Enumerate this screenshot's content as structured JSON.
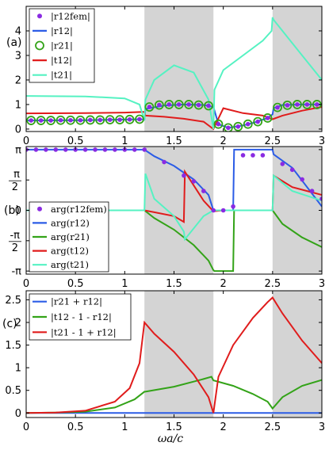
{
  "colors": {
    "blue": "#2b5ce6",
    "green": "#33a318",
    "red": "#e01c1c",
    "cyan": "#55f2c2",
    "purple": "#8a2be2",
    "band": "#d4d4d4"
  },
  "chart_data": [
    {
      "type": "line",
      "panel_label": "(a)",
      "xlim": [
        0,
        3
      ],
      "ylim": [
        -0.1,
        5
      ],
      "x_ticks": [
        0,
        0.5,
        1,
        1.5,
        2,
        2.5,
        3
      ],
      "x_tick_labels": [
        "0",
        "0.5",
        "1",
        "1.5",
        "2",
        "2.5",
        "3"
      ],
      "y_ticks": [
        0,
        1,
        2,
        3,
        4
      ],
      "y_tick_labels": [
        "0",
        "1",
        "2",
        "3",
        "4"
      ],
      "shaded_bands": [
        [
          1.2,
          1.9
        ],
        [
          2.5,
          3.0
        ]
      ],
      "legend": [
        {
          "label": "|r12fem|",
          "color_key": "purple",
          "style": "dot"
        },
        {
          "label": "|r12|",
          "color_key": "blue",
          "style": "line"
        },
        {
          "label": "|r21|",
          "color_key": "green",
          "style": "circle"
        },
        {
          "label": "|t12|",
          "color_key": "red",
          "style": "line"
        },
        {
          "label": "|t21|",
          "color_key": "cyan",
          "style": "line"
        }
      ],
      "series": [
        {
          "name": "|r12|",
          "color_key": "blue",
          "x": [
            0,
            0.6,
            1.2,
            1.21,
            1.4,
            1.6,
            1.8,
            1.9,
            1.95,
            2.05,
            2.2,
            2.3,
            2.45,
            2.5,
            2.51,
            2.6,
            2.8,
            3.0
          ],
          "y": [
            0.35,
            0.36,
            0.4,
            0.82,
            0.96,
            1.0,
            0.98,
            0.9,
            0.2,
            0.05,
            0.15,
            0.25,
            0.45,
            0.6,
            0.85,
            0.98,
            1.0,
            1.0
          ]
        },
        {
          "name": "|t12|",
          "color_key": "red",
          "x": [
            0,
            0.6,
            1.0,
            1.2,
            1.21,
            1.4,
            1.6,
            1.8,
            1.9,
            2.0,
            2.2,
            2.4,
            2.5,
            2.6,
            2.8,
            3.0
          ],
          "y": [
            0.64,
            0.65,
            0.67,
            0.7,
            0.55,
            0.5,
            0.42,
            0.3,
            0.0,
            0.85,
            0.65,
            0.55,
            0.4,
            0.55,
            0.75,
            0.9
          ]
        },
        {
          "name": "|t21|",
          "color_key": "cyan",
          "x": [
            0,
            0.6,
            1.0,
            1.15,
            1.2,
            1.21,
            1.3,
            1.5,
            1.7,
            1.85,
            1.9,
            1.91,
            2.0,
            2.2,
            2.4,
            2.49,
            2.5,
            2.51,
            2.7,
            3.0
          ],
          "y": [
            1.35,
            1.33,
            1.25,
            1.0,
            0.35,
            1.2,
            2.0,
            2.6,
            2.3,
            1.2,
            0.0,
            1.6,
            2.4,
            3.0,
            3.6,
            4.0,
            4.55,
            4.45,
            3.5,
            2.0
          ]
        },
        {
          "name": "|r12fem|",
          "color_key": "purple",
          "x": [
            0.05,
            0.15,
            0.25,
            0.35,
            0.45,
            0.55,
            0.65,
            0.75,
            0.85,
            0.95,
            1.05,
            1.15,
            1.25,
            1.35,
            1.45,
            1.55,
            1.65,
            1.75,
            1.85,
            1.95,
            2.05,
            2.15,
            2.25,
            2.35,
            2.45,
            2.55,
            2.65,
            2.75,
            2.85,
            2.95
          ],
          "y": [
            0.35,
            0.35,
            0.35,
            0.36,
            0.36,
            0.36,
            0.37,
            0.37,
            0.38,
            0.38,
            0.39,
            0.4,
            0.9,
            0.98,
            1.0,
            1.0,
            1.0,
            0.98,
            0.95,
            0.2,
            0.05,
            0.1,
            0.2,
            0.3,
            0.45,
            0.88,
            0.97,
            1.0,
            1.0,
            1.0
          ]
        },
        {
          "name": "|r21|",
          "color_key": "green",
          "x": [
            0.05,
            0.15,
            0.25,
            0.35,
            0.45,
            0.55,
            0.65,
            0.75,
            0.85,
            0.95,
            1.05,
            1.15,
            1.25,
            1.35,
            1.45,
            1.55,
            1.65,
            1.75,
            1.85,
            1.95,
            2.05,
            2.15,
            2.25,
            2.35,
            2.45,
            2.55,
            2.65,
            2.75,
            2.85,
            2.95
          ],
          "y": [
            0.35,
            0.35,
            0.35,
            0.36,
            0.36,
            0.36,
            0.37,
            0.37,
            0.38,
            0.38,
            0.39,
            0.4,
            0.9,
            0.98,
            1.0,
            1.0,
            1.0,
            0.98,
            0.95,
            0.2,
            0.05,
            0.1,
            0.2,
            0.3,
            0.45,
            0.88,
            0.97,
            1.0,
            1.0,
            1.0
          ]
        }
      ]
    },
    {
      "type": "line",
      "panel_label": "(b)",
      "xlim": [
        0,
        3
      ],
      "ylim": [
        -3.3,
        3.3
      ],
      "x_ticks": [
        0,
        0.5,
        1,
        1.5,
        2,
        2.5,
        3
      ],
      "x_tick_labels": [
        "0",
        "0.5",
        "1",
        "1.5",
        "2",
        "2.5",
        "3"
      ],
      "y_ticks": [
        3.1416,
        1.5708,
        0,
        -1.5708,
        -3.1416
      ],
      "y_tick_labels": [
        "π",
        "π/2",
        "0",
        "-π/2",
        "-π"
      ],
      "shaded_bands": [
        [
          1.2,
          1.9
        ],
        [
          2.5,
          3.0
        ]
      ],
      "legend": [
        {
          "label": "arg(r12fem)",
          "color_key": "purple",
          "style": "dot"
        },
        {
          "label": "arg(r12)",
          "color_key": "blue",
          "style": "line"
        },
        {
          "label": "arg(r21)",
          "color_key": "green",
          "style": "line"
        },
        {
          "label": "arg(t12)",
          "color_key": "red",
          "style": "line"
        },
        {
          "label": "arg(t21)",
          "color_key": "cyan",
          "style": "line"
        }
      ],
      "series": [
        {
          "name": "arg(r12)",
          "color_key": "blue",
          "x": [
            0,
            1.2,
            1.3,
            1.5,
            1.7,
            1.85,
            1.9,
            2.1,
            2.11,
            2.5,
            2.51,
            2.7,
            3.0
          ],
          "y": [
            3.14,
            3.14,
            2.8,
            2.3,
            1.6,
            0.8,
            0.0,
            0.0,
            3.14,
            3.14,
            2.9,
            2.2,
            0.2
          ]
        },
        {
          "name": "arg(r21)",
          "color_key": "green",
          "x": [
            0,
            1.2,
            1.3,
            1.5,
            1.7,
            1.85,
            1.9,
            1.91,
            2.1,
            2.11,
            2.5,
            2.6,
            2.8,
            3.0
          ],
          "y": [
            0,
            0,
            -0.4,
            -1.0,
            -1.8,
            -2.6,
            -3.1,
            -3.14,
            -3.14,
            0,
            0,
            -0.7,
            -1.4,
            -1.9
          ]
        },
        {
          "name": "arg(t12)",
          "color_key": "red",
          "x": [
            0,
            1.2,
            1.3,
            1.5,
            1.6,
            1.61,
            1.8,
            1.9,
            2.0,
            2.3,
            2.5,
            2.51,
            2.7,
            3.0
          ],
          "y": [
            0,
            0,
            -0.1,
            -0.3,
            -0.6,
            2.0,
            0.5,
            -0.05,
            0,
            0,
            0,
            1.8,
            1.2,
            0.8
          ]
        },
        {
          "name": "arg(t21)",
          "color_key": "cyan",
          "x": [
            0,
            1.2,
            1.21,
            1.3,
            1.5,
            1.6,
            1.61,
            1.8,
            1.9,
            2.0,
            2.5,
            2.51,
            2.7,
            3.0
          ],
          "y": [
            0,
            0,
            1.9,
            0.6,
            -0.3,
            -1.1,
            -1.5,
            -0.3,
            0,
            0,
            0,
            1.8,
            1.0,
            0.5
          ]
        },
        {
          "name": "arg(r12fem)",
          "color_key": "purple",
          "x": [
            0.0,
            0.1,
            0.2,
            0.3,
            0.4,
            0.5,
            0.6,
            0.7,
            0.8,
            0.9,
            1.0,
            1.1,
            1.2,
            1.4,
            1.6,
            1.7,
            1.8,
            1.9,
            2.0,
            2.1,
            2.2,
            2.3,
            2.4,
            2.6,
            2.7,
            2.8,
            2.9,
            3.0
          ],
          "y": [
            3.14,
            3.14,
            3.14,
            3.14,
            3.14,
            3.14,
            3.14,
            3.14,
            3.14,
            3.14,
            3.14,
            3.14,
            3.14,
            2.5,
            1.8,
            1.5,
            1.0,
            0.0,
            0.0,
            0.2,
            2.85,
            2.85,
            2.85,
            2.4,
            2.1,
            1.6,
            1.0,
            0.6
          ]
        }
      ]
    },
    {
      "type": "line",
      "panel_label": "(c)",
      "xlim": [
        0,
        3
      ],
      "ylim": [
        -0.1,
        2.7
      ],
      "x_ticks": [
        0,
        0.5,
        1,
        1.5,
        2,
        2.5,
        3
      ],
      "x_tick_labels": [
        "0",
        "0.5",
        "1",
        "1.5",
        "2",
        "2.5",
        "3"
      ],
      "y_ticks": [
        0,
        0.5,
        1,
        1.5,
        2,
        2.5
      ],
      "y_tick_labels": [
        "0",
        "0.5",
        "1",
        "1.5",
        "2",
        "2.5"
      ],
      "shaded_bands": [
        [
          1.2,
          1.9
        ],
        [
          2.5,
          3.0
        ]
      ],
      "xlabel": "ωa/c",
      "legend": [
        {
          "label": "|r21 + r12|",
          "color_key": "blue",
          "style": "line"
        },
        {
          "label": "|t12 - 1 - r12|",
          "color_key": "green",
          "style": "line"
        },
        {
          "label": "|t21 - 1 + r12|",
          "color_key": "red",
          "style": "line"
        }
      ],
      "series": [
        {
          "name": "|r21 + r12|",
          "color_key": "blue",
          "x": [
            0,
            3.0
          ],
          "y": [
            0,
            0
          ]
        },
        {
          "name": "|t12 - 1 - r12|",
          "color_key": "green",
          "x": [
            0,
            0.3,
            0.6,
            0.9,
            1.1,
            1.2,
            1.21,
            1.5,
            1.8,
            1.88,
            1.9,
            2.1,
            2.3,
            2.45,
            2.5,
            2.6,
            2.8,
            3.0
          ],
          "y": [
            0,
            0.01,
            0.03,
            0.12,
            0.3,
            0.47,
            0.47,
            0.58,
            0.75,
            0.8,
            0.72,
            0.6,
            0.42,
            0.25,
            0.1,
            0.35,
            0.6,
            0.73
          ]
        },
        {
          "name": "|t21 - 1 + r12|",
          "color_key": "red",
          "x": [
            0,
            0.3,
            0.6,
            0.9,
            1.05,
            1.15,
            1.2,
            1.3,
            1.5,
            1.7,
            1.85,
            1.9,
            1.95,
            2.1,
            2.3,
            2.45,
            2.5,
            2.6,
            2.8,
            3.0
          ],
          "y": [
            0,
            0.01,
            0.05,
            0.25,
            0.55,
            1.1,
            2.0,
            1.75,
            1.35,
            0.85,
            0.35,
            0.0,
            0.8,
            1.5,
            2.1,
            2.45,
            2.55,
            2.2,
            1.6,
            1.1
          ]
        }
      ]
    }
  ]
}
